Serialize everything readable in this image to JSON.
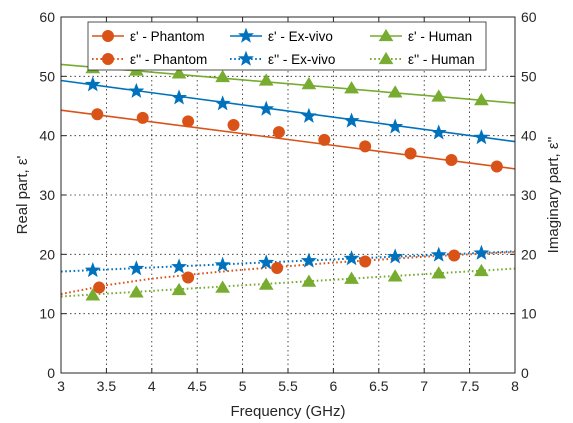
{
  "chart_data": {
    "type": "line",
    "xlabel": "Frequency (GHz)",
    "ylabel_left": "Real part, ε'",
    "ylabel_right": "Imaginary part, ε''",
    "xlim": [
      3,
      8
    ],
    "ylim": [
      0,
      60
    ],
    "xticks": [
      3,
      3.5,
      4,
      4.5,
      5,
      5.5,
      6,
      6.5,
      7,
      7.5,
      8
    ],
    "xtick_labels": [
      "3",
      "3.5",
      "4",
      "4.5",
      "5",
      "5.5",
      "6",
      "6.5",
      "7",
      "7.5",
      "8"
    ],
    "yticks": [
      0,
      10,
      20,
      30,
      40,
      50,
      60
    ],
    "ytick_labels": [
      "0",
      "10",
      "20",
      "30",
      "40",
      "50",
      "60"
    ],
    "grid": true,
    "legend_position": "top",
    "series": [
      {
        "name": "ε' - Phantom",
        "color": "#D95319",
        "marker": "circle",
        "linestyle": "solid",
        "line": [
          [
            3,
            44.3
          ],
          [
            8,
            34.4
          ]
        ],
        "markers": [
          [
            3.4,
            43.6
          ],
          [
            3.9,
            43.0
          ],
          [
            4.4,
            42.4
          ],
          [
            4.9,
            41.8
          ],
          [
            5.4,
            40.6
          ],
          [
            5.9,
            39.3
          ],
          [
            6.35,
            38.2
          ],
          [
            6.85,
            37.0
          ],
          [
            7.3,
            35.9
          ],
          [
            7.8,
            34.8
          ]
        ]
      },
      {
        "name": "ε'' - Phantom",
        "color": "#D95319",
        "marker": "circle",
        "linestyle": "dotted",
        "line": [
          [
            3,
            13.3
          ],
          [
            3.5,
            14.8
          ],
          [
            4,
            15.9
          ],
          [
            4.5,
            16.7
          ],
          [
            5,
            17.4
          ],
          [
            5.5,
            18.0
          ],
          [
            6,
            18.6
          ],
          [
            6.5,
            19.1
          ],
          [
            7,
            19.6
          ],
          [
            7.5,
            20.0
          ],
          [
            8,
            20.4
          ]
        ],
        "markers": [
          [
            3.42,
            14.4
          ],
          [
            4.4,
            16.1
          ],
          [
            5.38,
            17.7
          ],
          [
            6.35,
            18.8
          ],
          [
            7.33,
            19.8
          ]
        ]
      },
      {
        "name": "ε' - Ex-vivo",
        "color": "#0072BD",
        "marker": "star",
        "linestyle": "solid",
        "line": [
          [
            3,
            49.3
          ],
          [
            8,
            39.0
          ]
        ],
        "markers": [
          [
            3.35,
            48.6
          ],
          [
            3.83,
            47.5
          ],
          [
            4.3,
            46.4
          ],
          [
            4.78,
            45.4
          ],
          [
            5.26,
            44.5
          ],
          [
            5.73,
            43.3
          ],
          [
            6.2,
            42.5
          ],
          [
            6.68,
            41.5
          ],
          [
            7.16,
            40.5
          ],
          [
            7.63,
            39.7
          ]
        ]
      },
      {
        "name": "ε'' - Ex-vivo",
        "color": "#0072BD",
        "marker": "star",
        "linestyle": "dotted",
        "line": [
          [
            3,
            17.1
          ],
          [
            8,
            20.5
          ]
        ],
        "markers": [
          [
            3.35,
            17.3
          ],
          [
            3.83,
            17.6
          ],
          [
            4.3,
            17.9
          ],
          [
            4.78,
            18.2
          ],
          [
            5.26,
            18.6
          ],
          [
            5.73,
            18.9
          ],
          [
            6.2,
            19.3
          ],
          [
            6.68,
            19.6
          ],
          [
            7.16,
            19.9
          ],
          [
            7.63,
            20.2
          ]
        ]
      },
      {
        "name": "ε' - Human",
        "color": "#77AC30",
        "marker": "triangle",
        "linestyle": "solid",
        "line": [
          [
            3,
            52.0
          ],
          [
            8,
            45.5
          ]
        ],
        "markers": [
          [
            3.35,
            51.4
          ],
          [
            3.83,
            51.0
          ],
          [
            4.3,
            50.5
          ],
          [
            4.78,
            49.9
          ],
          [
            5.26,
            49.3
          ],
          [
            5.73,
            48.7
          ],
          [
            6.2,
            48.0
          ],
          [
            6.68,
            47.3
          ],
          [
            7.16,
            46.6
          ],
          [
            7.63,
            46.0
          ]
        ]
      },
      {
        "name": "ε'' - Human",
        "color": "#77AC30",
        "marker": "triangle",
        "linestyle": "dotted",
        "line": [
          [
            3,
            12.9
          ],
          [
            8,
            17.6
          ]
        ],
        "markers": [
          [
            3.35,
            13.1
          ],
          [
            3.83,
            13.6
          ],
          [
            4.3,
            14.0
          ],
          [
            4.78,
            14.4
          ],
          [
            5.26,
            14.9
          ],
          [
            5.73,
            15.4
          ],
          [
            6.2,
            15.9
          ],
          [
            6.68,
            16.3
          ],
          [
            7.16,
            16.8
          ],
          [
            7.63,
            17.2
          ]
        ]
      }
    ],
    "legend_order": [
      0,
      2,
      4,
      1,
      3,
      5
    ]
  }
}
